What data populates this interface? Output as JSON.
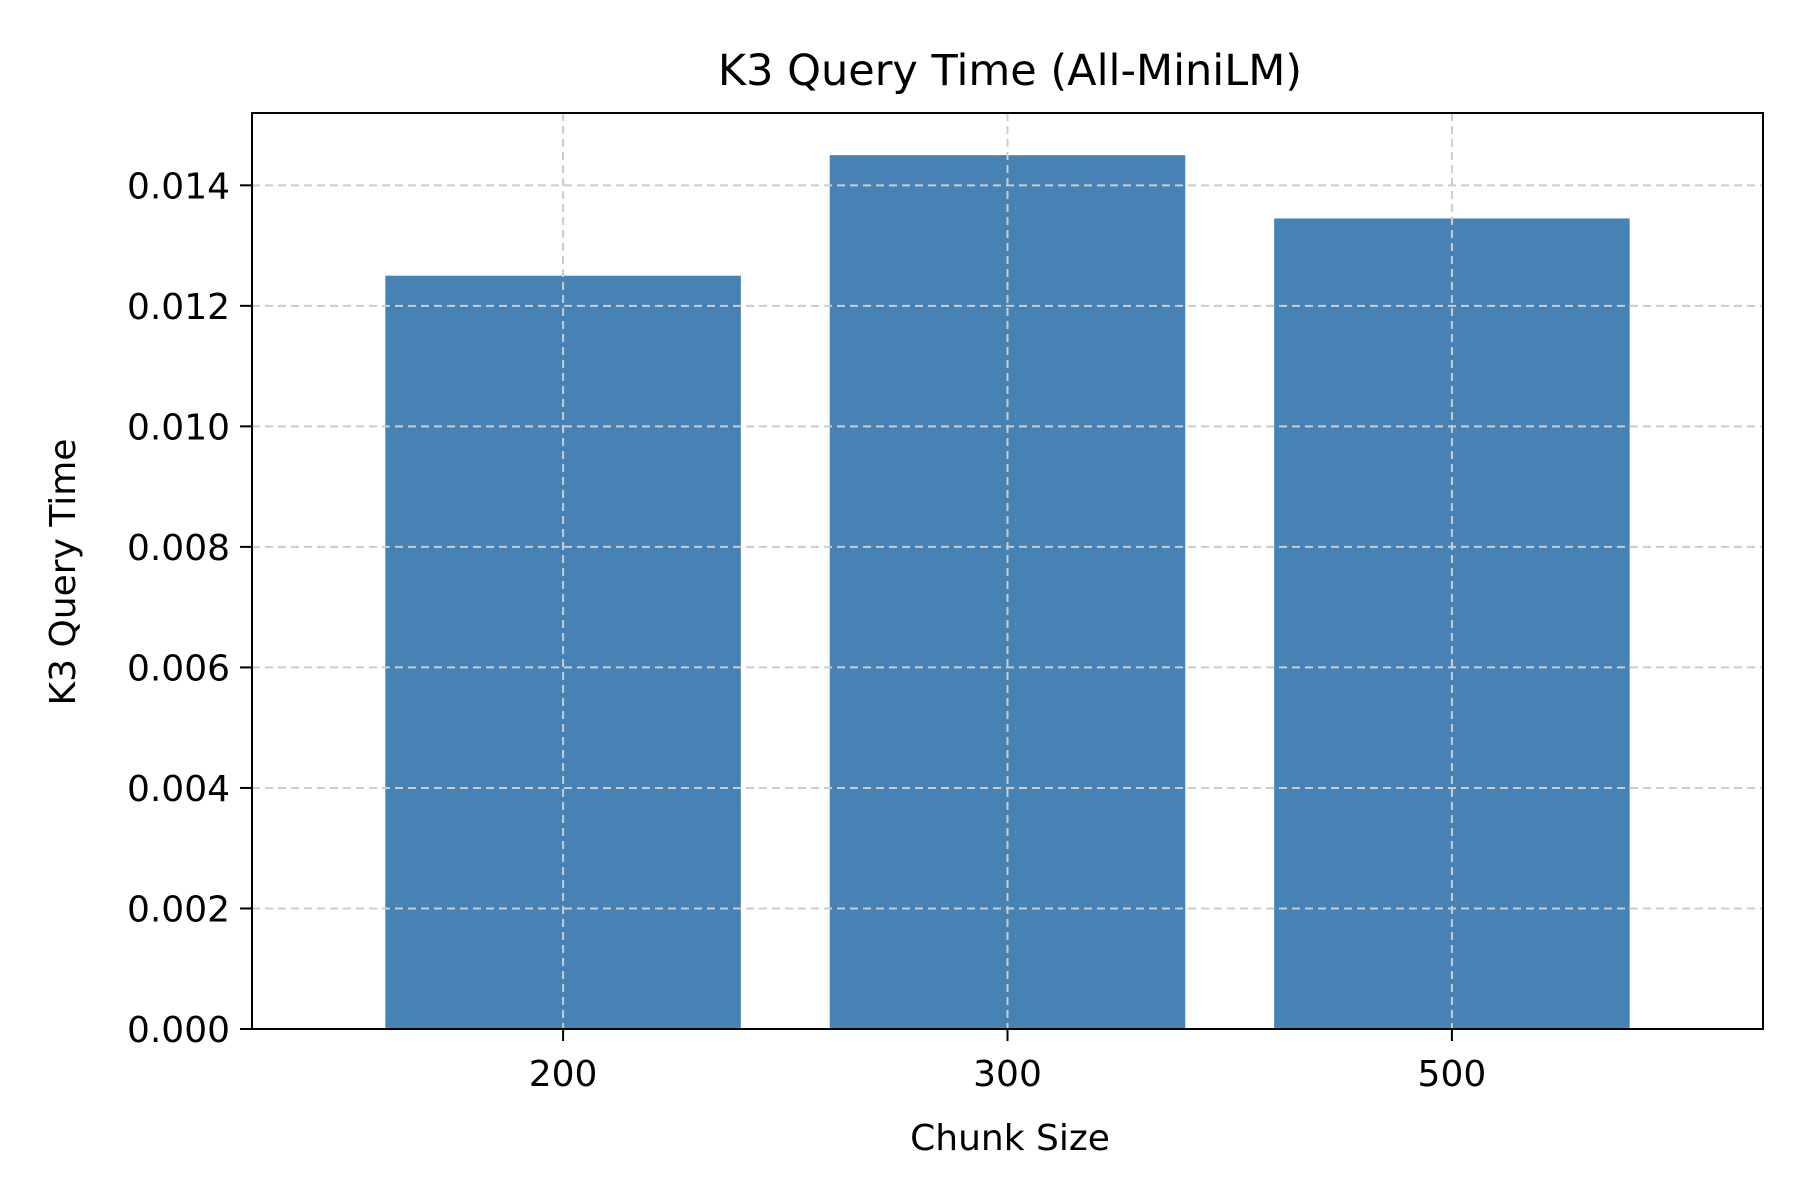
{
  "chart_data": {
    "type": "bar",
    "title": "K3 Query Time (All-MiniLM)",
    "xlabel": "Chunk Size",
    "ylabel": "K3 Query Time",
    "categories": [
      "200",
      "300",
      "500"
    ],
    "values": [
      0.0125,
      0.0145,
      0.01345
    ],
    "ylim": [
      0,
      0.0152
    ],
    "yticks": [
      0.0,
      0.002,
      0.004,
      0.006,
      0.008,
      0.01,
      0.012,
      0.014
    ],
    "ytick_labels": [
      "0.000",
      "0.002",
      "0.004",
      "0.006",
      "0.008",
      "0.010",
      "0.012",
      "0.014"
    ],
    "grid": true,
    "legend": "none",
    "colors": {
      "bar": "#4682b4",
      "grid": "#cccccc",
      "axis": "#000000"
    }
  }
}
